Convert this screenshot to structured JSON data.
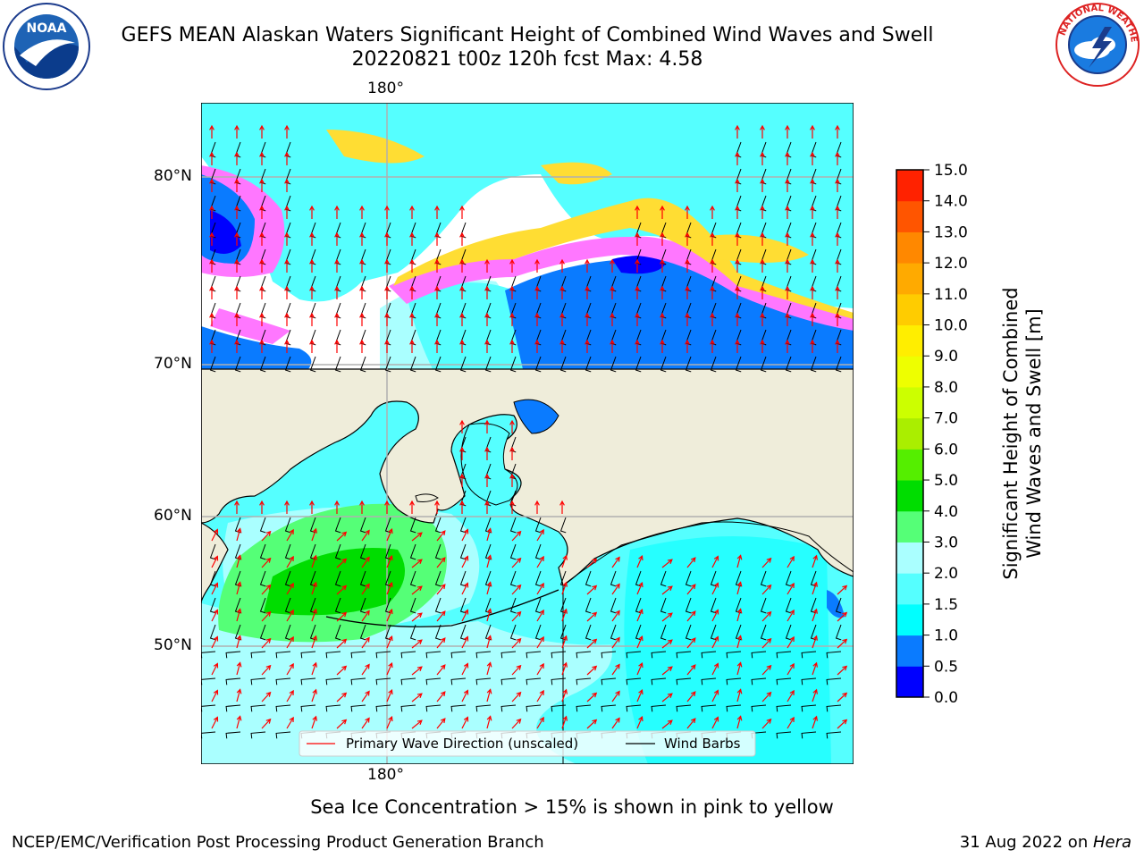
{
  "header": {
    "title_line1": "GEFS MEAN Alaskan Waters Significant Height of Combined Wind Waves and Swell",
    "title_line2": "20220821 t00z 120h fcst   Max: 4.58"
  },
  "logos": {
    "left_text": "NOAA",
    "left_ring_text": "NATIONAL OCEANIC AND ATMOSPHERIC ADMINISTRATION · U.S. DEPARTMENT OF COMMERCE",
    "right_ring_text": "NATIONAL WEATHER SERVICE"
  },
  "map": {
    "lon_label_top": "180°",
    "lon_label_bottom": "180°",
    "lat_labels": [
      "80°N",
      "70°N",
      "60°N",
      "50°N"
    ],
    "legend": {
      "wave_label": "Primary Wave Direction (unscaled)",
      "barb_label": "Wind Barbs",
      "wave_color": "#ff0000",
      "barb_color": "#000000"
    },
    "colors": {
      "land": "#efedda",
      "ocean_default": "#66ffff",
      "ice_pink": "#ff77ff",
      "ice_yellow": "#ffdd33"
    }
  },
  "colorbar": {
    "label_line1": "Significant Height of Combined",
    "label_line2": "Wind Waves and Swell [m]",
    "ticks": [
      "0.0",
      "0.5",
      "1.0",
      "1.5",
      "2.0",
      "3.0",
      "4.0",
      "5.0",
      "6.0",
      "7.0",
      "8.0",
      "9.0",
      "10.0",
      "11.0",
      "12.0",
      "13.0",
      "14.0",
      "15.0"
    ],
    "colors": [
      "#0000ff",
      "#0a7bff",
      "#00ffff",
      "#55ffff",
      "#aaffff",
      "#55ff77",
      "#00dd00",
      "#55ee00",
      "#aaee00",
      "#ccff00",
      "#eeff00",
      "#ffee00",
      "#ffcc00",
      "#ffaa00",
      "#ff8800",
      "#ff5500",
      "#ff2200"
    ]
  },
  "footer": {
    "sea_ice_note": "Sea Ice Concentration > 15% is shown in pink to yellow",
    "left_credit": "NCEP/EMC/Verification Post Processing Product Generation Branch",
    "right_date": "31 Aug 2022 on ",
    "right_host": "Hera"
  }
}
